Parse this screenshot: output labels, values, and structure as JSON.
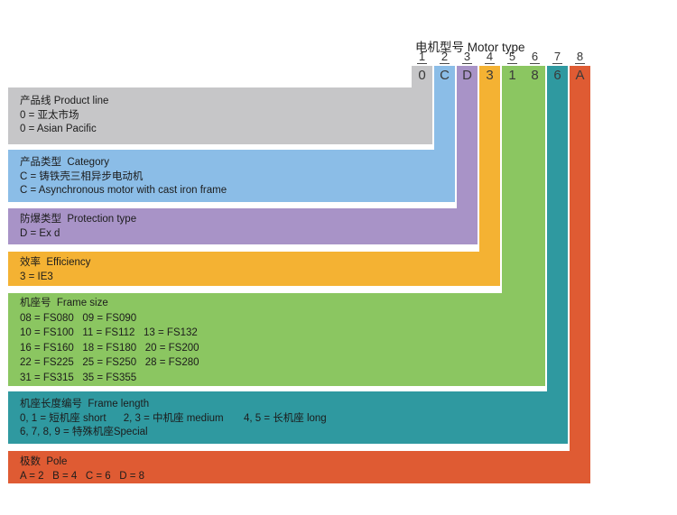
{
  "header": {
    "title": "电机型号 Motor type",
    "positions": [
      "1",
      "2",
      "3",
      "4",
      "5",
      "6",
      "7",
      "8"
    ],
    "code": [
      "0",
      "C",
      "D",
      "3",
      "1",
      "8",
      "6",
      "A"
    ]
  },
  "colors": {
    "gray": "#c6c6c8",
    "blue": "#8bbde7",
    "purple": "#a893c7",
    "amber": "#f4b233",
    "green": "#8bc661",
    "teal": "#2f99a0",
    "orange": "#df5b33"
  },
  "bands": [
    {
      "id": "product-line",
      "positions": [
        "1"
      ],
      "code_chars": [
        "0"
      ],
      "color": "#c6c6c8",
      "lines": [
        "产品线 Product line",
        "0 = 亚太市场",
        "0 = Asian Pacific"
      ]
    },
    {
      "id": "category",
      "positions": [
        "2"
      ],
      "code_chars": [
        "C"
      ],
      "color": "#8bbde7",
      "lines": [
        "产品类型  Category",
        "C = 铸铁壳三相异步电动机",
        "C = Asynchronous motor with cast iron frame"
      ]
    },
    {
      "id": "protection-type",
      "positions": [
        "3"
      ],
      "code_chars": [
        "D"
      ],
      "color": "#a893c7",
      "lines": [
        "防爆类型  Protection type",
        "D = Ex d"
      ]
    },
    {
      "id": "efficiency",
      "positions": [
        "4"
      ],
      "code_chars": [
        "3"
      ],
      "color": "#f4b233",
      "lines": [
        "效率  Efficiency",
        "3 = IE3"
      ]
    },
    {
      "id": "frame-size",
      "positions": [
        "5",
        "6"
      ],
      "code_chars": [
        "1",
        "8"
      ],
      "color": "#8bc661",
      "lines": [
        "机座号  Frame size",
        "08 = FS080   09 = FS090",
        "10 = FS100   11 = FS112   13 = FS132",
        "16 = FS160   18 = FS180   20 = FS200",
        "22 = FS225   25 = FS250   28 = FS280",
        "31 = FS315   35 = FS355"
      ]
    },
    {
      "id": "frame-length",
      "positions": [
        "7"
      ],
      "code_chars": [
        "6"
      ],
      "color": "#2f99a0",
      "lines": [
        "机座长度编号  Frame length",
        "0, 1 = 短机座 short      2, 3 = 中机座 medium       4, 5 = 长机座 long",
        "6, 7, 8, 9 = 特殊机座Special"
      ]
    },
    {
      "id": "pole",
      "positions": [
        "8"
      ],
      "code_chars": [
        "A"
      ],
      "color": "#df5b33",
      "lines": [
        "极数  Pole",
        "A = 2   B = 4   C = 6   D = 8"
      ]
    }
  ]
}
